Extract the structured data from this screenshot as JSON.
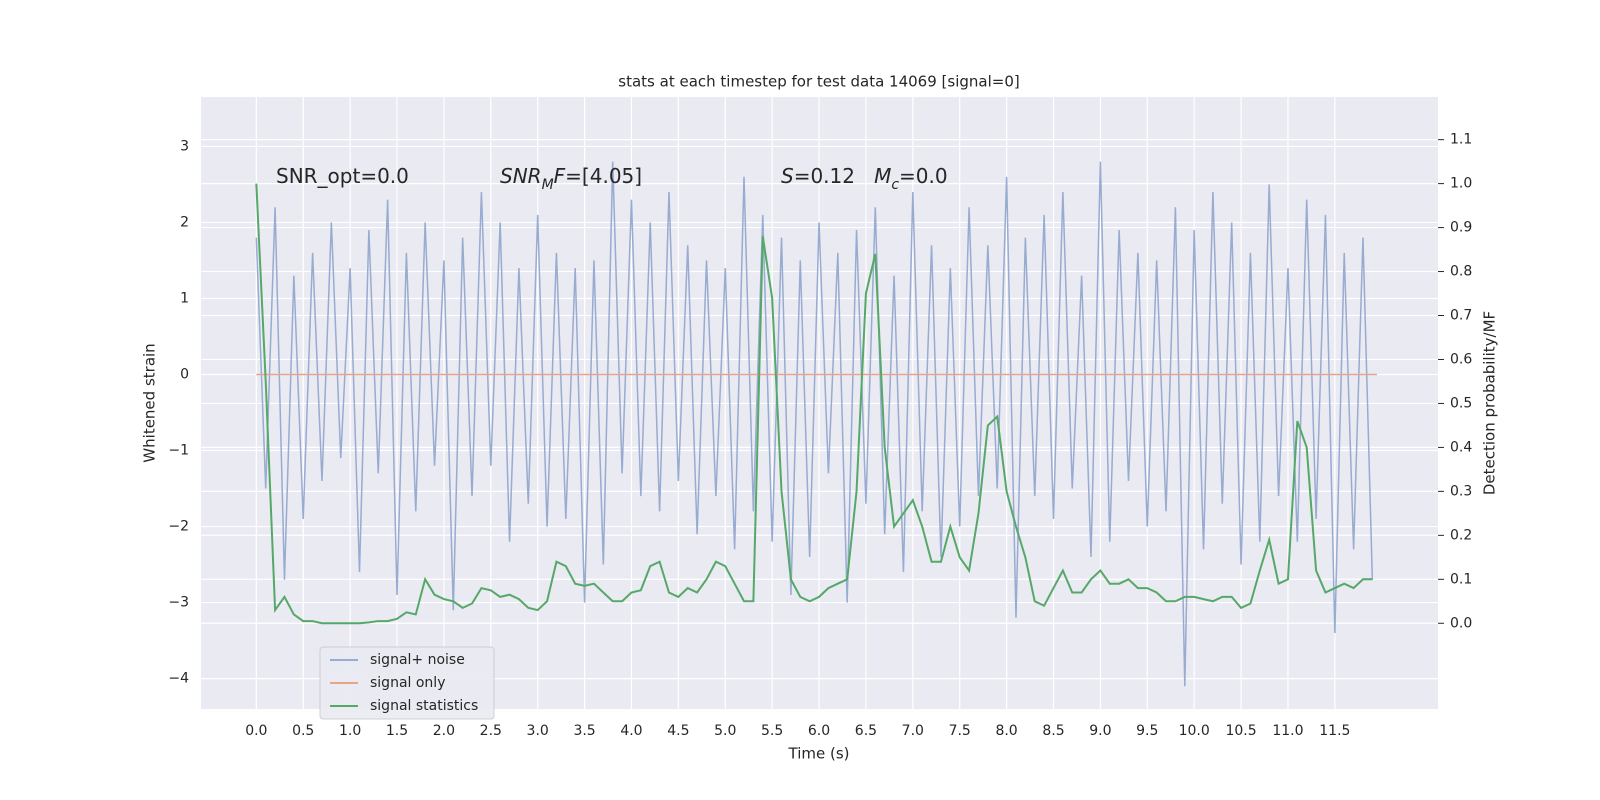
{
  "chart_data": {
    "type": "line",
    "title": "stats at each timestep for test data 14069 [signal=0]",
    "xlabel": "Time (s)",
    "ylabel": "Whitened strain",
    "y2label": "Detection probability/MF",
    "xlim": [
      -0.59,
      12.6
    ],
    "ylim": [
      -4.4,
      3.65
    ],
    "y2lim": [
      -0.195,
      1.197
    ],
    "xticks": [
      {
        "value": 0,
        "label": "0.0"
      },
      0.5,
      {
        "value": 1,
        "label": "1.0"
      },
      1.5,
      {
        "value": 2,
        "label": "2.0"
      },
      2.5,
      {
        "value": 3,
        "label": "3.0"
      },
      3.5,
      {
        "value": 4,
        "label": "4.0"
      },
      4.5,
      {
        "value": 5,
        "label": "5.0"
      },
      5.5,
      {
        "value": 6,
        "label": "6.0"
      },
      6.5,
      {
        "value": 7,
        "label": "7.0"
      },
      7.5,
      {
        "value": 8,
        "label": "8.0"
      },
      8.5,
      {
        "value": 9,
        "label": "9.0"
      },
      9.5,
      {
        "value": 10,
        "label": "10.0"
      },
      10.5,
      {
        "value": 11,
        "label": "11.0"
      },
      11.5
    ],
    "yticks": [
      {
        "value": -4,
        "label": "−4"
      },
      {
        "value": -3,
        "label": "−3"
      },
      {
        "value": -2,
        "label": "−2"
      },
      {
        "value": -1,
        "label": "−1"
      },
      0,
      1,
      2,
      3
    ],
    "y2ticks": [
      {
        "value": 0,
        "label": "0.0"
      },
      0.1,
      0.2,
      0.3,
      0.4,
      0.5,
      0.6,
      0.7,
      0.8,
      0.9,
      {
        "value": 1,
        "label": "1.0"
      },
      1.1
    ],
    "grid": true,
    "legend": "lower left",
    "annotations": [
      [
        {
          "text": "SNR_opt=0.0"
        }
      ],
      [
        {
          "text": "SNR",
          "style": "italic"
        },
        {
          "text": "M",
          "style": "sub"
        },
        {
          "text": "F",
          "style": "italic"
        },
        {
          "text": "=[4.05]"
        }
      ],
      [
        {
          "text": "S",
          "style": "italic"
        },
        {
          "text": "=0.12   "
        },
        {
          "text": "M",
          "style": "italic"
        },
        {
          "text": "c",
          "style": "sub"
        },
        {
          "text": "=0.0"
        }
      ]
    ],
    "series": [
      {
        "name": "signal+ noise",
        "color": "#98abd1",
        "x": [
          0.0,
          0.1,
          0.2,
          0.3,
          0.4,
          0.5,
          0.6,
          0.7,
          0.8,
          0.9,
          1.0,
          1.1,
          1.2,
          1.3,
          1.4,
          1.5,
          1.6,
          1.7,
          1.8,
          1.9,
          2.0,
          2.1,
          2.2,
          2.3,
          2.4,
          2.5,
          2.6,
          2.7,
          2.8,
          2.9,
          3.0,
          3.1,
          3.2,
          3.3,
          3.4,
          3.5,
          3.6,
          3.7,
          3.8,
          3.9,
          4.0,
          4.1,
          4.2,
          4.3,
          4.4,
          4.5,
          4.6,
          4.7,
          4.8,
          4.9,
          5.0,
          5.1,
          5.2,
          5.3,
          5.4,
          5.5,
          5.6,
          5.7,
          5.8,
          5.9,
          6.0,
          6.1,
          6.2,
          6.3,
          6.4,
          6.5,
          6.6,
          6.7,
          6.8,
          6.9,
          7.0,
          7.1,
          7.2,
          7.3,
          7.4,
          7.5,
          7.6,
          7.7,
          7.8,
          7.9,
          8.0,
          8.1,
          8.2,
          8.3,
          8.4,
          8.5,
          8.6,
          8.7,
          8.8,
          8.9,
          9.0,
          9.1,
          9.2,
          9.3,
          9.4,
          9.5,
          9.6,
          9.7,
          9.8,
          9.9,
          10.0,
          10.1,
          10.2,
          10.3,
          10.4,
          10.5,
          10.6,
          10.7,
          10.8,
          10.9,
          11.0,
          11.1,
          11.2,
          11.3,
          11.4,
          11.5,
          11.6,
          11.7,
          11.8,
          11.9
        ],
        "values": [
          1.8,
          -1.5,
          2.2,
          -2.7,
          1.3,
          -1.9,
          1.6,
          -1.4,
          2.0,
          -1.1,
          1.4,
          -2.6,
          1.9,
          -1.3,
          2.3,
          -2.9,
          1.6,
          -1.8,
          2.0,
          -1.2,
          1.5,
          -3.1,
          1.8,
          -1.6,
          2.4,
          -1.2,
          2.0,
          -2.2,
          1.4,
          -1.7,
          2.1,
          -2.0,
          1.6,
          -1.9,
          1.4,
          -3.0,
          1.5,
          -2.5,
          2.8,
          -1.3,
          2.3,
          -1.6,
          2.0,
          -1.8,
          2.4,
          -1.4,
          1.7,
          -2.1,
          1.5,
          -1.6,
          1.4,
          -2.3,
          2.6,
          -1.8,
          2.1,
          -2.2,
          1.8,
          -2.9,
          1.5,
          -2.4,
          2.0,
          -1.3,
          1.6,
          -3.0,
          1.9,
          -1.7,
          2.2,
          -2.1,
          1.3,
          -2.6,
          2.4,
          -1.8,
          1.7,
          -2.4,
          1.4,
          -2.0,
          2.2,
          -1.6,
          1.7,
          -1.5,
          2.6,
          -3.2,
          1.8,
          -1.6,
          2.1,
          -1.9,
          2.4,
          -1.5,
          1.3,
          -2.4,
          2.8,
          -2.2,
          1.9,
          -1.4,
          1.6,
          -2.0,
          1.5,
          -1.8,
          2.2,
          -4.1,
          1.9,
          -2.3,
          2.4,
          -1.7,
          2.0,
          -2.5,
          1.6,
          -2.2,
          2.5,
          -1.6,
          1.4,
          -2.2,
          2.3,
          -1.9,
          2.1,
          -3.4,
          1.6,
          -2.3,
          1.8,
          -2.7
        ]
      },
      {
        "name": "signal only",
        "color": "#e6a48c",
        "x": [
          0.0,
          11.95
        ],
        "values": [
          0,
          0
        ]
      },
      {
        "name": "signal statistics",
        "color": "#55a868",
        "axis": "y2",
        "x": [
          0.0,
          0.1,
          0.2,
          0.3,
          0.4,
          0.5,
          0.6,
          0.7,
          0.8,
          0.9,
          1.0,
          1.1,
          1.2,
          1.3,
          1.4,
          1.5,
          1.6,
          1.7,
          1.8,
          1.9,
          2.0,
          2.1,
          2.2,
          2.3,
          2.4,
          2.5,
          2.6,
          2.7,
          2.8,
          2.9,
          3.0,
          3.1,
          3.2,
          3.3,
          3.4,
          3.5,
          3.6,
          3.7,
          3.8,
          3.9,
          4.0,
          4.1,
          4.2,
          4.3,
          4.4,
          4.5,
          4.6,
          4.7,
          4.8,
          4.9,
          5.0,
          5.1,
          5.2,
          5.3,
          5.4,
          5.5,
          5.6,
          5.7,
          5.8,
          5.9,
          6.0,
          6.1,
          6.2,
          6.3,
          6.4,
          6.5,
          6.6,
          6.7,
          6.8,
          6.9,
          7.0,
          7.1,
          7.2,
          7.3,
          7.4,
          7.5,
          7.6,
          7.7,
          7.8,
          7.9,
          8.0,
          8.1,
          8.2,
          8.3,
          8.4,
          8.5,
          8.6,
          8.7,
          8.8,
          8.9,
          9.0,
          9.1,
          9.2,
          9.3,
          9.4,
          9.5,
          9.6,
          9.7,
          9.8,
          9.9,
          10.0,
          10.1,
          10.2,
          10.3,
          10.4,
          10.5,
          10.6,
          10.7,
          10.8,
          10.9,
          11.0,
          11.1,
          11.2,
          11.3,
          11.4,
          11.5,
          11.6,
          11.7,
          11.8,
          11.9
        ],
        "values": [
          1.0,
          0.55,
          0.03,
          0.06,
          0.02,
          0.005,
          0.005,
          0.0,
          0.0,
          0.0,
          0.0,
          0.0,
          0.002,
          0.005,
          0.005,
          0.01,
          0.025,
          0.02,
          0.1,
          0.065,
          0.055,
          0.05,
          0.035,
          0.045,
          0.08,
          0.075,
          0.06,
          0.065,
          0.055,
          0.035,
          0.03,
          0.05,
          0.14,
          0.13,
          0.09,
          0.085,
          0.09,
          0.07,
          0.05,
          0.05,
          0.07,
          0.075,
          0.13,
          0.14,
          0.07,
          0.06,
          0.08,
          0.07,
          0.1,
          0.14,
          0.13,
          0.09,
          0.05,
          0.05,
          0.88,
          0.74,
          0.3,
          0.1,
          0.06,
          0.05,
          0.06,
          0.08,
          0.09,
          0.1,
          0.3,
          0.75,
          0.84,
          0.4,
          0.22,
          0.25,
          0.28,
          0.22,
          0.14,
          0.14,
          0.22,
          0.15,
          0.12,
          0.25,
          0.45,
          0.47,
          0.3,
          0.22,
          0.15,
          0.05,
          0.04,
          0.08,
          0.12,
          0.07,
          0.07,
          0.1,
          0.12,
          0.09,
          0.09,
          0.1,
          0.08,
          0.08,
          0.07,
          0.05,
          0.05,
          0.06,
          0.06,
          0.055,
          0.05,
          0.06,
          0.06,
          0.035,
          0.045,
          0.12,
          0.19,
          0.09,
          0.1,
          0.46,
          0.4,
          0.12,
          0.07,
          0.08,
          0.09,
          0.08,
          0.1,
          0.1
        ]
      }
    ]
  }
}
